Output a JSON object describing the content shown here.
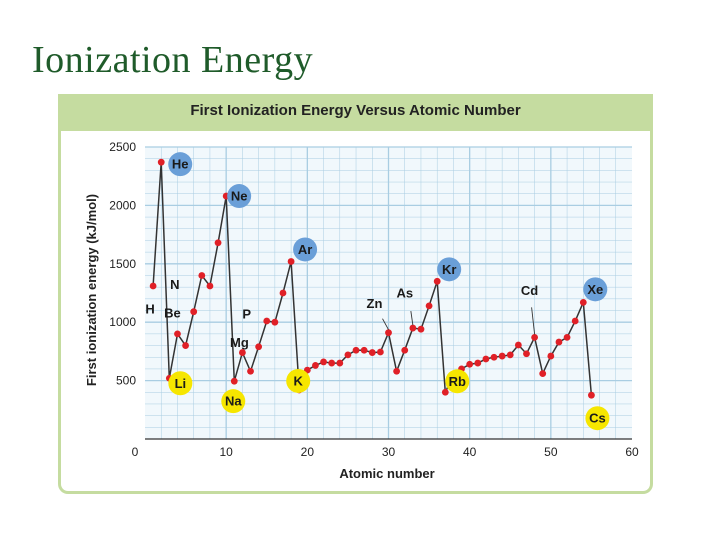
{
  "slide": {
    "title": "Ionization Energy"
  },
  "colors": {
    "frame": "#c5dca0",
    "grid": "#a9cde2",
    "line": "#333333",
    "point": "#e02027",
    "noble_gas_badge": "#6a9fd8",
    "alkali_badge": "#f6e600"
  },
  "chart_data": {
    "type": "line",
    "title": "First Ionization Energy Versus Atomic Number",
    "xlabel": "Atomic number",
    "ylabel": "First ionization energy (kJ/mol)",
    "xlim": [
      0,
      60
    ],
    "ylim": [
      0,
      2500
    ],
    "xticks": [
      0,
      10,
      20,
      30,
      40,
      50,
      60
    ],
    "yticks": [
      500,
      1000,
      1500,
      2000,
      2500
    ],
    "grid": true,
    "x": [
      1,
      2,
      3,
      4,
      5,
      6,
      7,
      8,
      9,
      10,
      11,
      12,
      13,
      14,
      15,
      16,
      17,
      18,
      19,
      20,
      21,
      22,
      23,
      24,
      25,
      26,
      27,
      28,
      29,
      30,
      31,
      32,
      33,
      34,
      35,
      36,
      37,
      38,
      39,
      40,
      41,
      42,
      43,
      44,
      45,
      46,
      47,
      48,
      49,
      50,
      51,
      52,
      53,
      54,
      55
    ],
    "values": [
      1310,
      2370,
      520,
      900,
      800,
      1090,
      1400,
      1310,
      1680,
      2080,
      495,
      740,
      580,
      790,
      1010,
      1000,
      1250,
      1520,
      420,
      590,
      630,
      660,
      650,
      650,
      720,
      760,
      760,
      740,
      745,
      910,
      580,
      760,
      950,
      940,
      1140,
      1350,
      400,
      550,
      600,
      640,
      650,
      685,
      700,
      710,
      720,
      805,
      730,
      870,
      560,
      710,
      830,
      870,
      1010,
      1170,
      375
    ],
    "element_labels": [
      {
        "text": "He",
        "x": 2,
        "group": "noble"
      },
      {
        "text": "Ne",
        "x": 10,
        "group": "noble"
      },
      {
        "text": "Ar",
        "x": 18,
        "group": "noble"
      },
      {
        "text": "Kr",
        "x": 36,
        "group": "noble"
      },
      {
        "text": "Xe",
        "x": 54,
        "group": "noble"
      },
      {
        "text": "Li",
        "x": 3,
        "group": "alkali"
      },
      {
        "text": "Na",
        "x": 11,
        "group": "alkali"
      },
      {
        "text": "K",
        "x": 19,
        "group": "alkali"
      },
      {
        "text": "Rb",
        "x": 37,
        "group": "alkali"
      },
      {
        "text": "Cs",
        "x": 55,
        "group": "alkali"
      },
      {
        "text": "H",
        "x": 1,
        "group": "plain"
      },
      {
        "text": "Be",
        "x": 4,
        "group": "plain"
      },
      {
        "text": "N",
        "x": 7,
        "group": "plain"
      },
      {
        "text": "Mg",
        "x": 12,
        "group": "plain"
      },
      {
        "text": "P",
        "x": 15,
        "group": "plain"
      },
      {
        "text": "Zn",
        "x": 30,
        "group": "plain"
      },
      {
        "text": "As",
        "x": 33,
        "group": "plain"
      },
      {
        "text": "Cd",
        "x": 48,
        "group": "plain"
      }
    ]
  }
}
